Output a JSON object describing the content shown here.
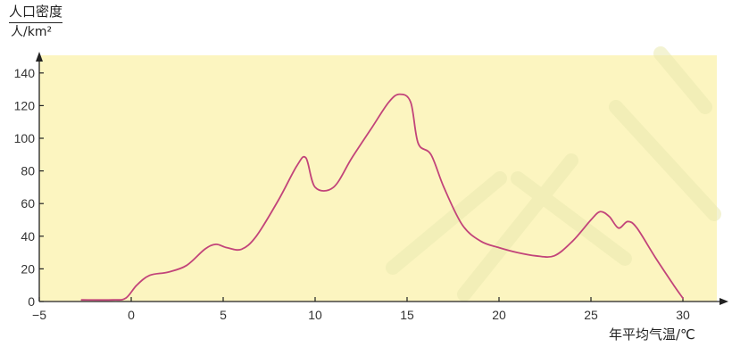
{
  "chart_data": {
    "type": "line",
    "ylabel_top": "人口密度",
    "ylabel_bottom": "人/km²",
    "xlabel": "年平均气温/℃",
    "xlim": [
      -5,
      32
    ],
    "ylim": [
      0,
      150
    ],
    "xticks": [
      -5,
      0,
      5,
      10,
      15,
      20,
      25,
      30
    ],
    "xtick_labels": [
      "−5",
      "0",
      "5",
      "10",
      "15",
      "20",
      "25",
      "30"
    ],
    "yticks": [
      0,
      20,
      40,
      60,
      80,
      100,
      120,
      140
    ],
    "plot_background": "#fcf5c0",
    "line_color": "#c2447a",
    "series": [
      {
        "x": [
          -2.7,
          -1.0,
          -0.3,
          0.3,
          1.0,
          2.0,
          3.0,
          4.0,
          4.6,
          5.2,
          6.0,
          6.8,
          8.0,
          9.0,
          9.5,
          10.0,
          11.0,
          12.0,
          13.0,
          14.0,
          14.6,
          15.2,
          15.6,
          16.3,
          17.0,
          18.0,
          19.0,
          20.0,
          21.0,
          22.0,
          23.0,
          24.0,
          25.0,
          25.5,
          26.0,
          26.5,
          27.0,
          27.5,
          28.5,
          29.5,
          30.0
        ],
        "y": [
          1,
          1,
          2,
          10,
          16,
          18,
          22,
          32,
          35,
          33,
          32,
          40,
          62,
          83,
          88,
          70,
          70,
          88,
          105,
          122,
          127,
          122,
          97,
          90,
          70,
          47,
          37,
          33,
          30,
          28,
          28,
          37,
          50,
          55,
          52,
          45,
          49,
          45,
          27,
          10,
          2
        ]
      }
    ]
  }
}
